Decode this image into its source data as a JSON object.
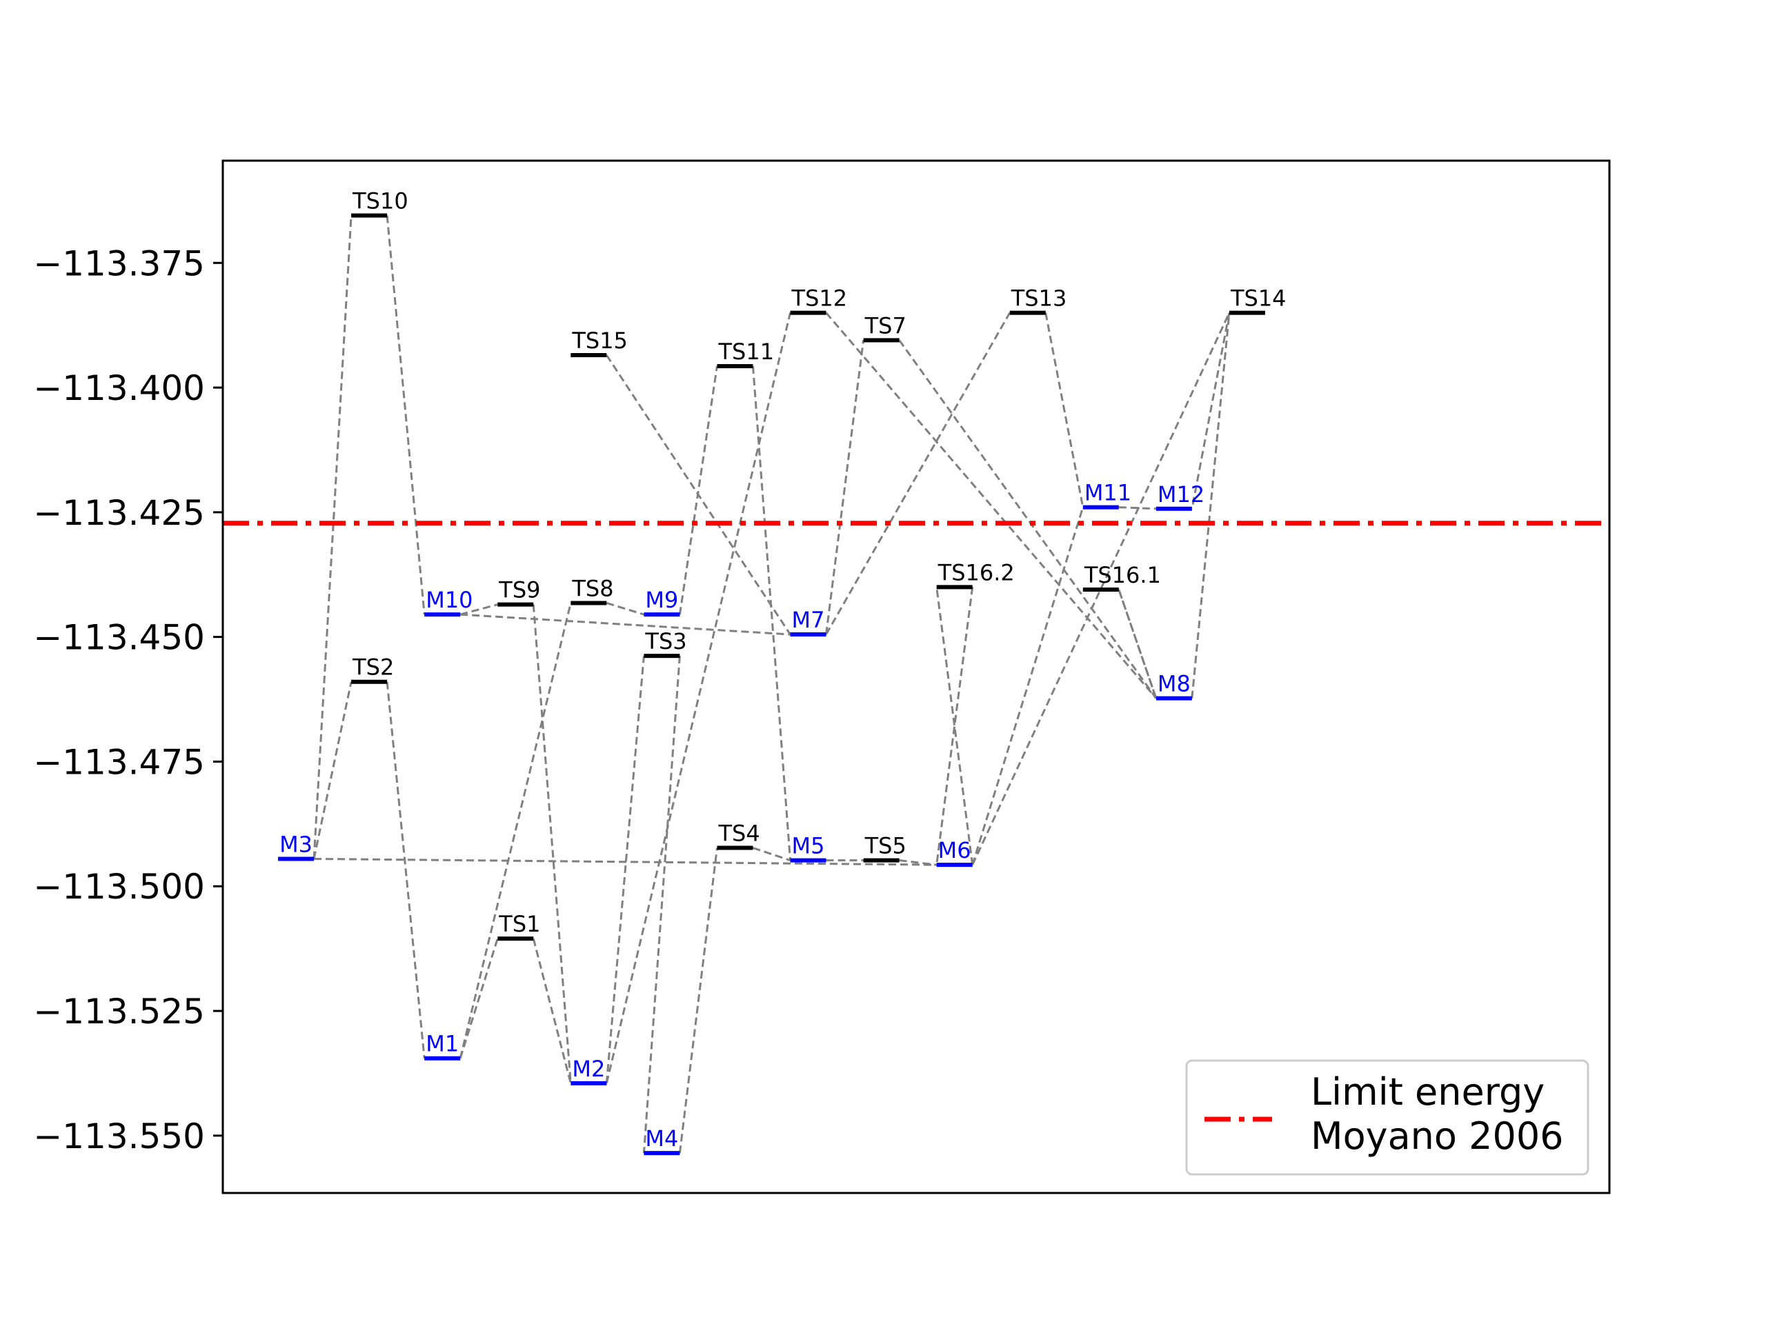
{
  "chart_data": {
    "type": "energy-level-diagram",
    "title": "",
    "xlabel": "",
    "ylabel": "",
    "ylim": [
      -113.5615,
      -113.3545
    ],
    "yticks": [
      -113.375,
      -113.4,
      -113.425,
      -113.45,
      -113.475,
      -113.5,
      -113.525,
      -113.55
    ],
    "ytick_labels": [
      "−113.375",
      "−113.400",
      "−113.425",
      "−113.450",
      "−113.475",
      "−113.500",
      "−113.525",
      "−113.550"
    ],
    "xlim": [
      0,
      18.95
    ],
    "xticks_shown": false,
    "grid": false,
    "colors": {
      "minimum": "#0000ff",
      "transition_state": "#000000",
      "connector": "#808080",
      "limit_line": "#ff0000"
    },
    "levels": [
      {
        "name": "M3",
        "kind": "minimum",
        "x": 1.0,
        "energy": -113.4945
      },
      {
        "name": "TS10",
        "kind": "transition_state",
        "x": 2.0,
        "energy": -113.3655
      },
      {
        "name": "TS2",
        "kind": "transition_state",
        "x": 2.0,
        "energy": -113.459
      },
      {
        "name": "M10",
        "kind": "minimum",
        "x": 3.0,
        "energy": -113.4455
      },
      {
        "name": "M1",
        "kind": "minimum",
        "x": 3.0,
        "energy": -113.5345
      },
      {
        "name": "TS9",
        "kind": "transition_state",
        "x": 4.0,
        "energy": -113.4435
      },
      {
        "name": "TS1",
        "kind": "transition_state",
        "x": 4.0,
        "energy": -113.5105
      },
      {
        "name": "TS15",
        "kind": "transition_state",
        "x": 5.0,
        "energy": -113.3935
      },
      {
        "name": "TS8",
        "kind": "transition_state",
        "x": 5.0,
        "energy": -113.4432
      },
      {
        "name": "M2",
        "kind": "minimum",
        "x": 5.0,
        "energy": -113.5395
      },
      {
        "name": "M9",
        "kind": "minimum",
        "x": 6.0,
        "energy": -113.4455
      },
      {
        "name": "TS3",
        "kind": "transition_state",
        "x": 6.0,
        "energy": -113.4538
      },
      {
        "name": "M4",
        "kind": "minimum",
        "x": 6.0,
        "energy": -113.5535
      },
      {
        "name": "TS11",
        "kind": "transition_state",
        "x": 7.0,
        "energy": -113.3957
      },
      {
        "name": "TS4",
        "kind": "transition_state",
        "x": 7.0,
        "energy": -113.4923
      },
      {
        "name": "TS12",
        "kind": "transition_state",
        "x": 8.0,
        "energy": -113.385
      },
      {
        "name": "M7",
        "kind": "minimum",
        "x": 8.0,
        "energy": -113.4495
      },
      {
        "name": "M5",
        "kind": "minimum",
        "x": 8.0,
        "energy": -113.4948
      },
      {
        "name": "TS5",
        "kind": "transition_state",
        "x": 9.0,
        "energy": -113.4948
      },
      {
        "name": "TS7",
        "kind": "transition_state",
        "x": 9.0,
        "energy": -113.3905
      },
      {
        "name": "M6",
        "kind": "minimum",
        "x": 10.0,
        "energy": -113.4957
      },
      {
        "name": "TS16.2",
        "kind": "transition_state",
        "x": 10.0,
        "energy": -113.44
      },
      {
        "name": "TS13",
        "kind": "transition_state",
        "x": 11.0,
        "energy": -113.385
      },
      {
        "name": "M11",
        "kind": "minimum",
        "x": 12.0,
        "energy": -113.424
      },
      {
        "name": "TS16.1",
        "kind": "transition_state",
        "x": 12.0,
        "energy": -113.4405
      },
      {
        "name": "M12",
        "kind": "minimum",
        "x": 13.0,
        "energy": -113.4243
      },
      {
        "name": "M8",
        "kind": "minimum",
        "x": 13.0,
        "energy": -113.4623
      },
      {
        "name": "TS14",
        "kind": "transition_state",
        "x": 14.0,
        "energy": -113.385
      }
    ],
    "connections": [
      [
        "M3",
        "TS10"
      ],
      [
        "TS10",
        "M10"
      ],
      [
        "M3",
        "TS2"
      ],
      [
        "TS2",
        "M1"
      ],
      [
        "M3",
        "M6"
      ],
      [
        "M1",
        "TS1"
      ],
      [
        "TS1",
        "M2"
      ],
      [
        "M1",
        "TS8"
      ],
      [
        "TS8",
        "M9"
      ],
      [
        "M10",
        "TS9"
      ],
      [
        "TS9",
        "M2"
      ],
      [
        "M10",
        "M7"
      ],
      [
        "M2",
        "TS3"
      ],
      [
        "TS3",
        "M4"
      ],
      [
        "M2",
        "TS12"
      ],
      [
        "TS12",
        "M8"
      ],
      [
        "M4",
        "TS4"
      ],
      [
        "TS4",
        "M5"
      ],
      [
        "M9",
        "TS11"
      ],
      [
        "TS11",
        "M5"
      ],
      [
        "TS15",
        "M7"
      ],
      [
        "M7",
        "TS7"
      ],
      [
        "TS7",
        "M8"
      ],
      [
        "M7",
        "TS13"
      ],
      [
        "TS13",
        "M11"
      ],
      [
        "M5",
        "TS5"
      ],
      [
        "TS5",
        "M6"
      ],
      [
        "M6",
        "TS16.2"
      ],
      [
        "TS16.2",
        "M6"
      ],
      [
        "M6",
        "M11"
      ],
      [
        "M11",
        "M12"
      ],
      [
        "M6",
        "TS14"
      ],
      [
        "TS14",
        "M12"
      ],
      [
        "M8",
        "TS16.1"
      ],
      [
        "TS16.1",
        "M8"
      ],
      [
        "M8",
        "TS14"
      ]
    ],
    "limit_line": {
      "energy": -113.4272,
      "label": "Limit energy"
    },
    "legend": {
      "placement": "lower-right",
      "entries": [
        "Limit energy",
        "Moyano 2006"
      ]
    }
  }
}
